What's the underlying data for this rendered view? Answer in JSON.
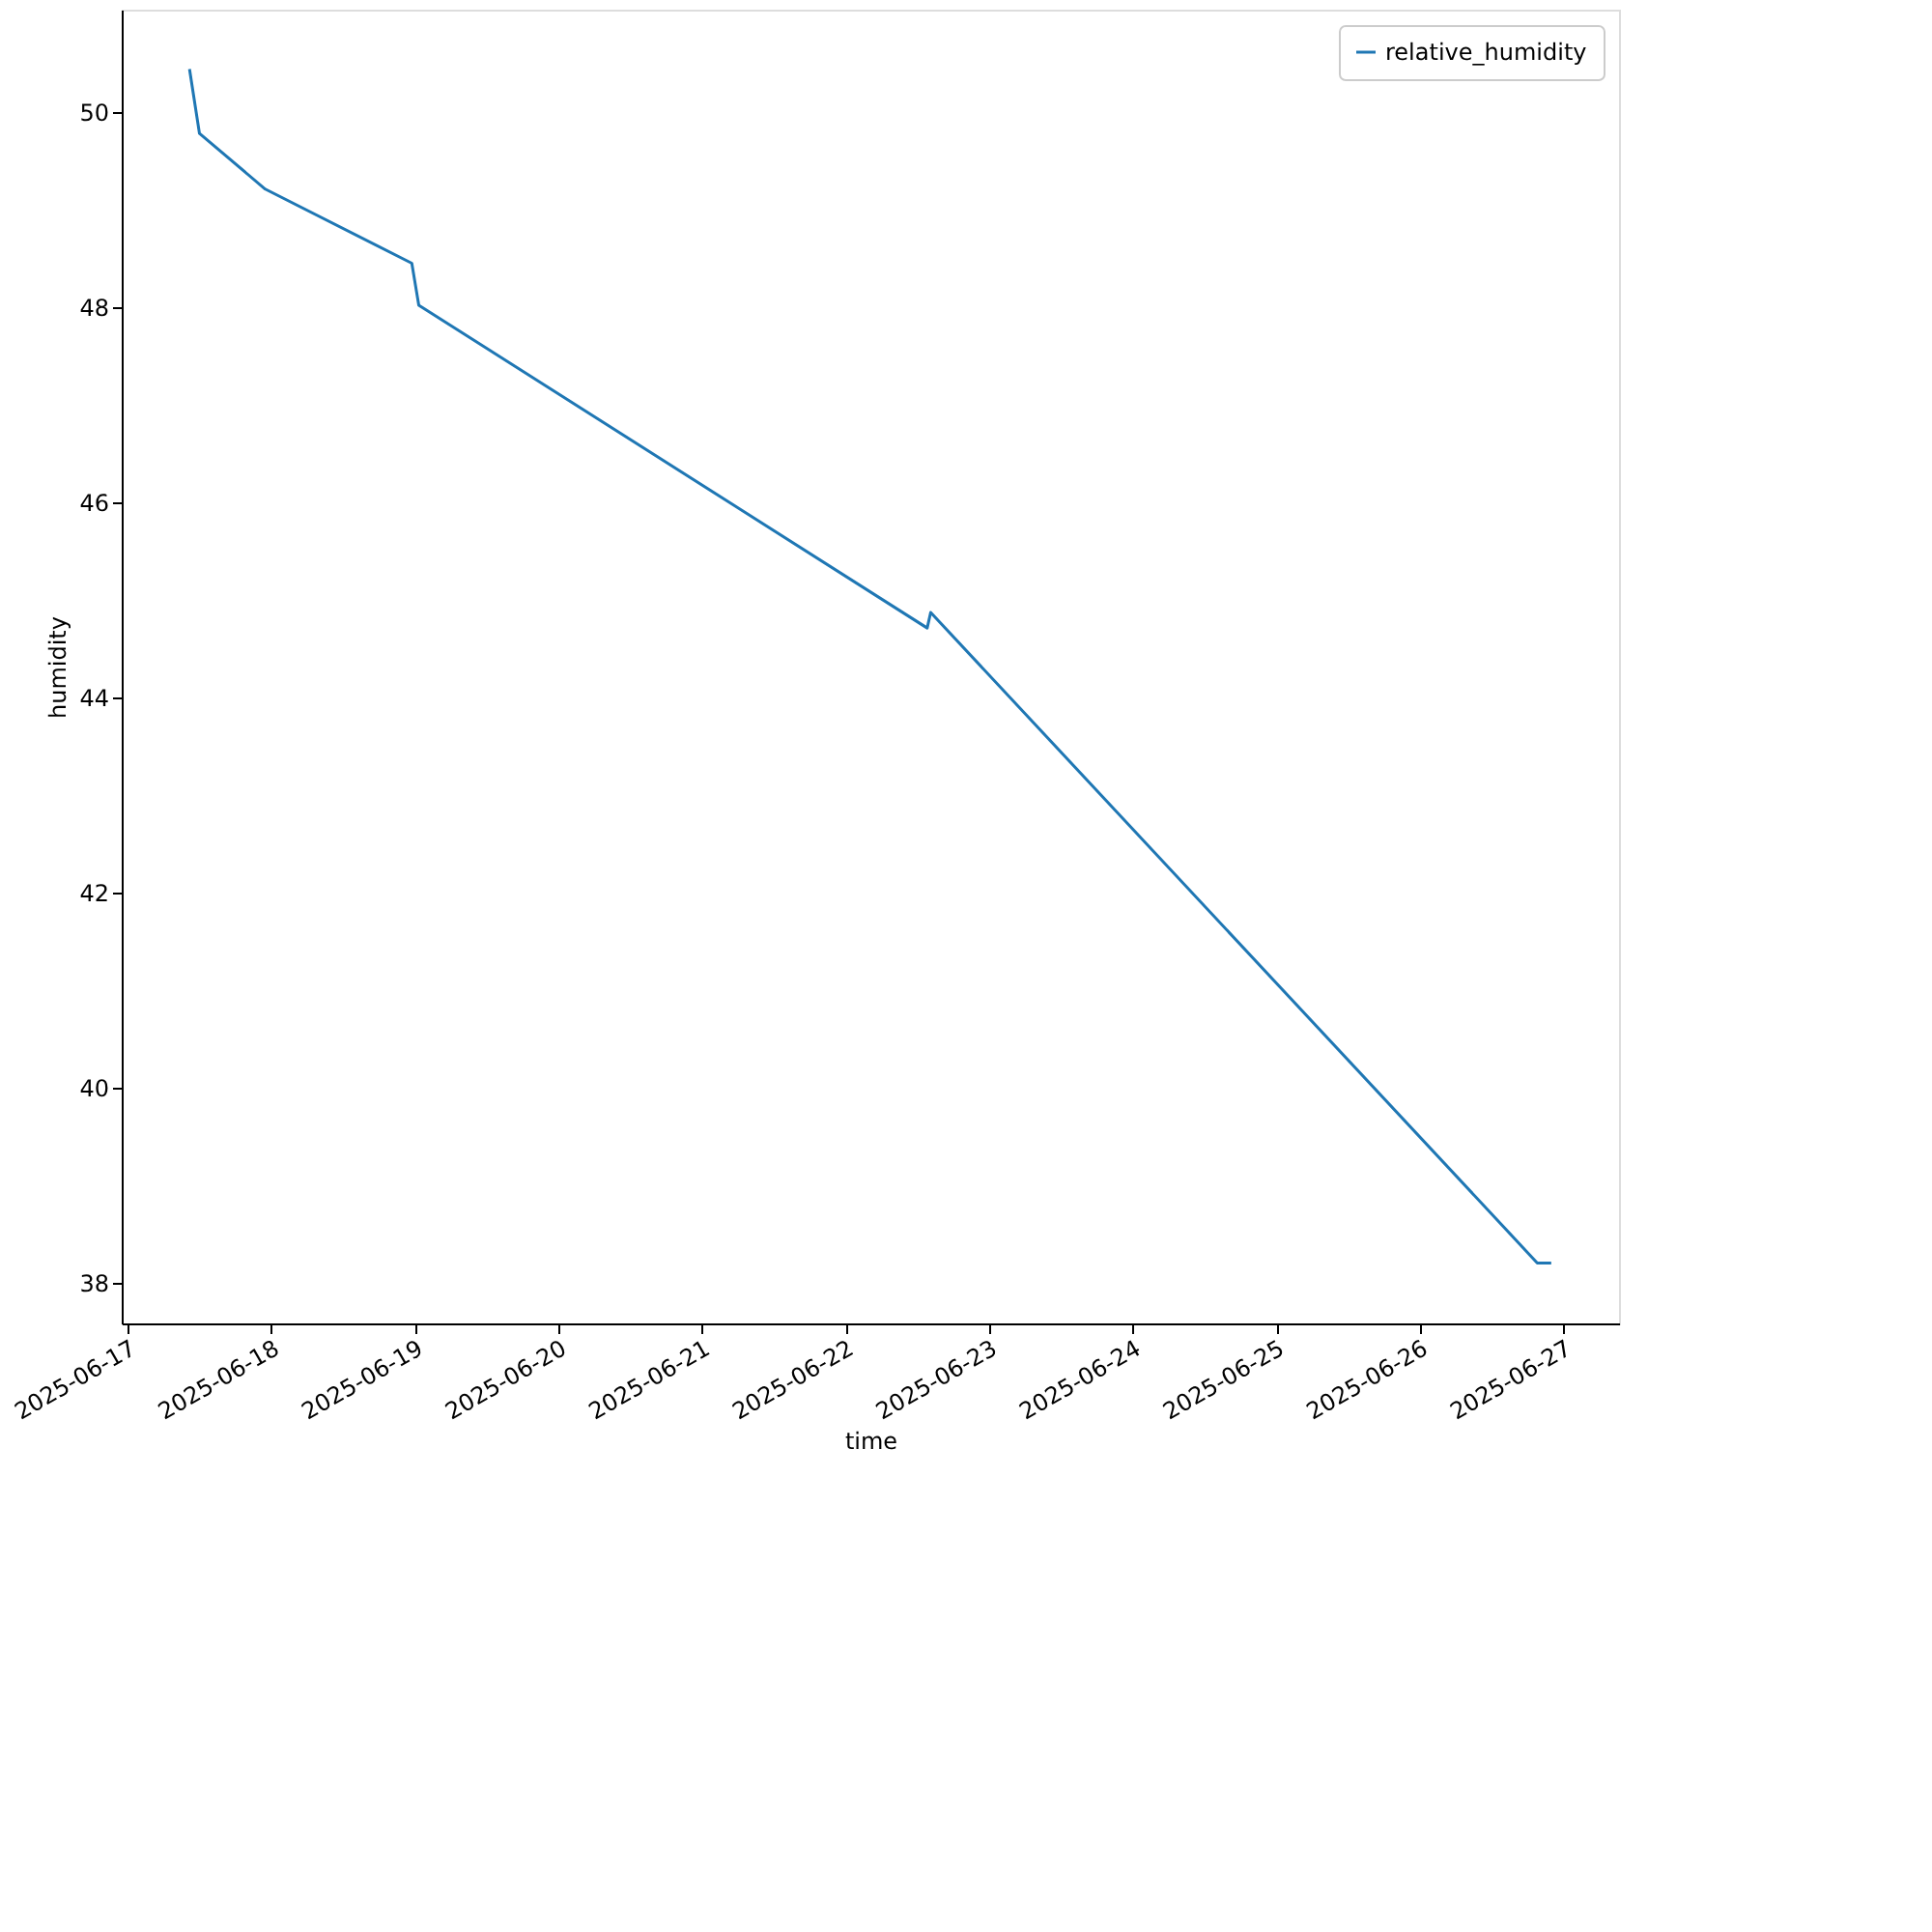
{
  "chart_data": {
    "type": "line",
    "xlabel": "time",
    "ylabel": "humidity",
    "x": [
      "2025-06-17T10:20",
      "2025-06-17T12:00",
      "2025-06-17T23:00",
      "2025-06-18T23:30",
      "2025-06-19T00:40",
      "2025-06-22T13:40",
      "2025-06-22T14:15",
      "2025-06-26T19:40",
      "2025-06-26T22:00"
    ],
    "series": [
      {
        "name": "relative_humidity",
        "color": "#1f77b4",
        "values": [
          50.44,
          49.78,
          49.21,
          48.45,
          48.02,
          44.71,
          44.87,
          38.2,
          38.2
        ]
      }
    ],
    "xlim": [
      "2025-06-16T23:00",
      "2025-06-27T09:20"
    ],
    "xticks": [
      "2025-06-17",
      "2025-06-18",
      "2025-06-19",
      "2025-06-20",
      "2025-06-21",
      "2025-06-22",
      "2025-06-23",
      "2025-06-24",
      "2025-06-25",
      "2025-06-26",
      "2025-06-27"
    ],
    "ylim": [
      37.58,
      51.05
    ],
    "yticks": [
      38,
      40,
      42,
      44,
      46,
      48,
      50
    ],
    "grid": false,
    "legend": "top right",
    "marker": "none",
    "line_style": "solid"
  }
}
